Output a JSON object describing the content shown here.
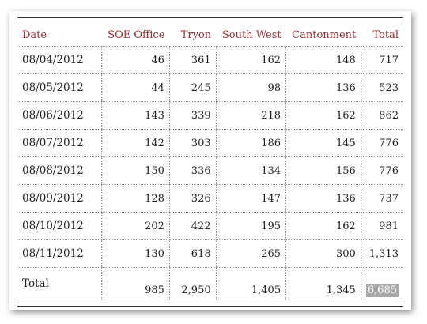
{
  "colors": {
    "header_text": "#9b2d2d",
    "highlight_bg": "#a9a9a9"
  },
  "table": {
    "headers": [
      "Date",
      "SOE Office",
      "Tryon",
      "South West",
      "Cantonment",
      "Total"
    ],
    "rows": [
      [
        "08/04/2012",
        "46",
        "361",
        "162",
        "148",
        "717"
      ],
      [
        "08/05/2012",
        "44",
        "245",
        "98",
        "136",
        "523"
      ],
      [
        "08/06/2012",
        "143",
        "339",
        "218",
        "162",
        "862"
      ],
      [
        "08/07/2012",
        "142",
        "303",
        "186",
        "145",
        "776"
      ],
      [
        "08/08/2012",
        "150",
        "336",
        "134",
        "156",
        "776"
      ],
      [
        "08/09/2012",
        "128",
        "326",
        "147",
        "136",
        "737"
      ],
      [
        "08/10/2012",
        "202",
        "422",
        "195",
        "162",
        "981"
      ],
      [
        "08/11/2012",
        "130",
        "618",
        "265",
        "300",
        "1,313"
      ]
    ],
    "total_row": [
      "Total",
      "985",
      "2,950",
      "1,405",
      "1,345",
      "6,685"
    ]
  }
}
